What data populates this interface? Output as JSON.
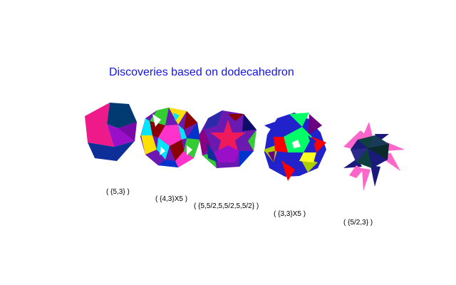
{
  "title": "Discoveries based on dodecahedron",
  "polyhedra": [
    {
      "label": "( {5,3} )",
      "icon": "dodecahedron-icon"
    },
    {
      "label": "( {4,3}X5 )",
      "icon": "compound-five-cubes-icon"
    },
    {
      "label": "( {5,5/2,5,5/2,5,5/2} )",
      "icon": "dodecadodecahedron-icon"
    },
    {
      "label": "( {3,3}X5 )",
      "icon": "compound-five-tetrahedra-icon"
    },
    {
      "label": "( {5/2,3} )",
      "icon": "great-stellated-dodecahedron-icon"
    }
  ],
  "colors": {
    "title": "#1414e6",
    "dodecahedron": [
      "#ee1a8a",
      "#003a70",
      "#9a10c8",
      "#0e2e98",
      "#2a54b8"
    ],
    "compound": [
      "#8b0000",
      "#00e6ff",
      "#33cc33",
      "#ffe000",
      "#6a1ab0",
      "#ff33cc",
      "#0033cc",
      "#ffffff"
    ],
    "tetrahedra": [
      "#00ff66",
      "#ff0000",
      "#2222cc",
      "#ffff22",
      "#aacc00",
      "#6b0080"
    ],
    "star": [
      "#ff66cc",
      "#1a1a7a",
      "#0f3f3f",
      "#7a1a4a"
    ]
  }
}
